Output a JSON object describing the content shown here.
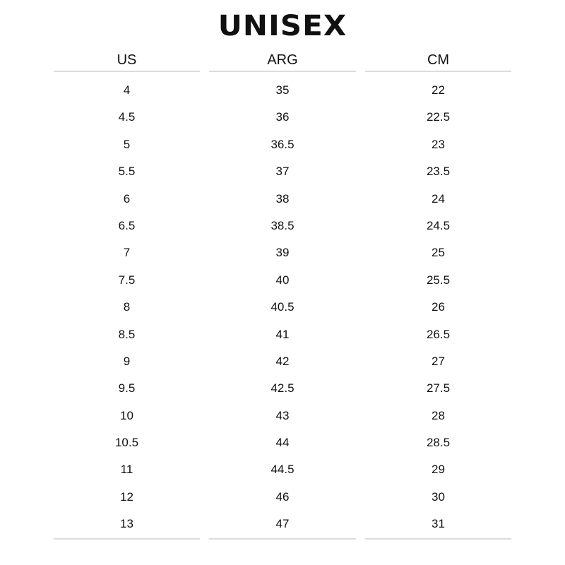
{
  "title": "UNISEX",
  "columns": [
    {
      "header": "US",
      "values": [
        "4",
        "4.5",
        "5",
        "5.5",
        "6",
        "6.5",
        "7",
        "7.5",
        "8",
        "8.5",
        "9",
        "9.5",
        "10",
        "10.5",
        "11",
        "12",
        "13"
      ]
    },
    {
      "header": "ARG",
      "values": [
        "35",
        "36",
        "36.5",
        "37",
        "38",
        "38.5",
        "39",
        "40",
        "40.5",
        "41",
        "42",
        "42.5",
        "43",
        "44",
        "44.5",
        "46",
        "47"
      ]
    },
    {
      "header": "CM",
      "values": [
        "22",
        "22.5",
        "23",
        "23.5",
        "24",
        "24.5",
        "25",
        "25.5",
        "26",
        "26.5",
        "27",
        "27.5",
        "28",
        "28.5",
        "29",
        "30",
        "31"
      ]
    }
  ]
}
